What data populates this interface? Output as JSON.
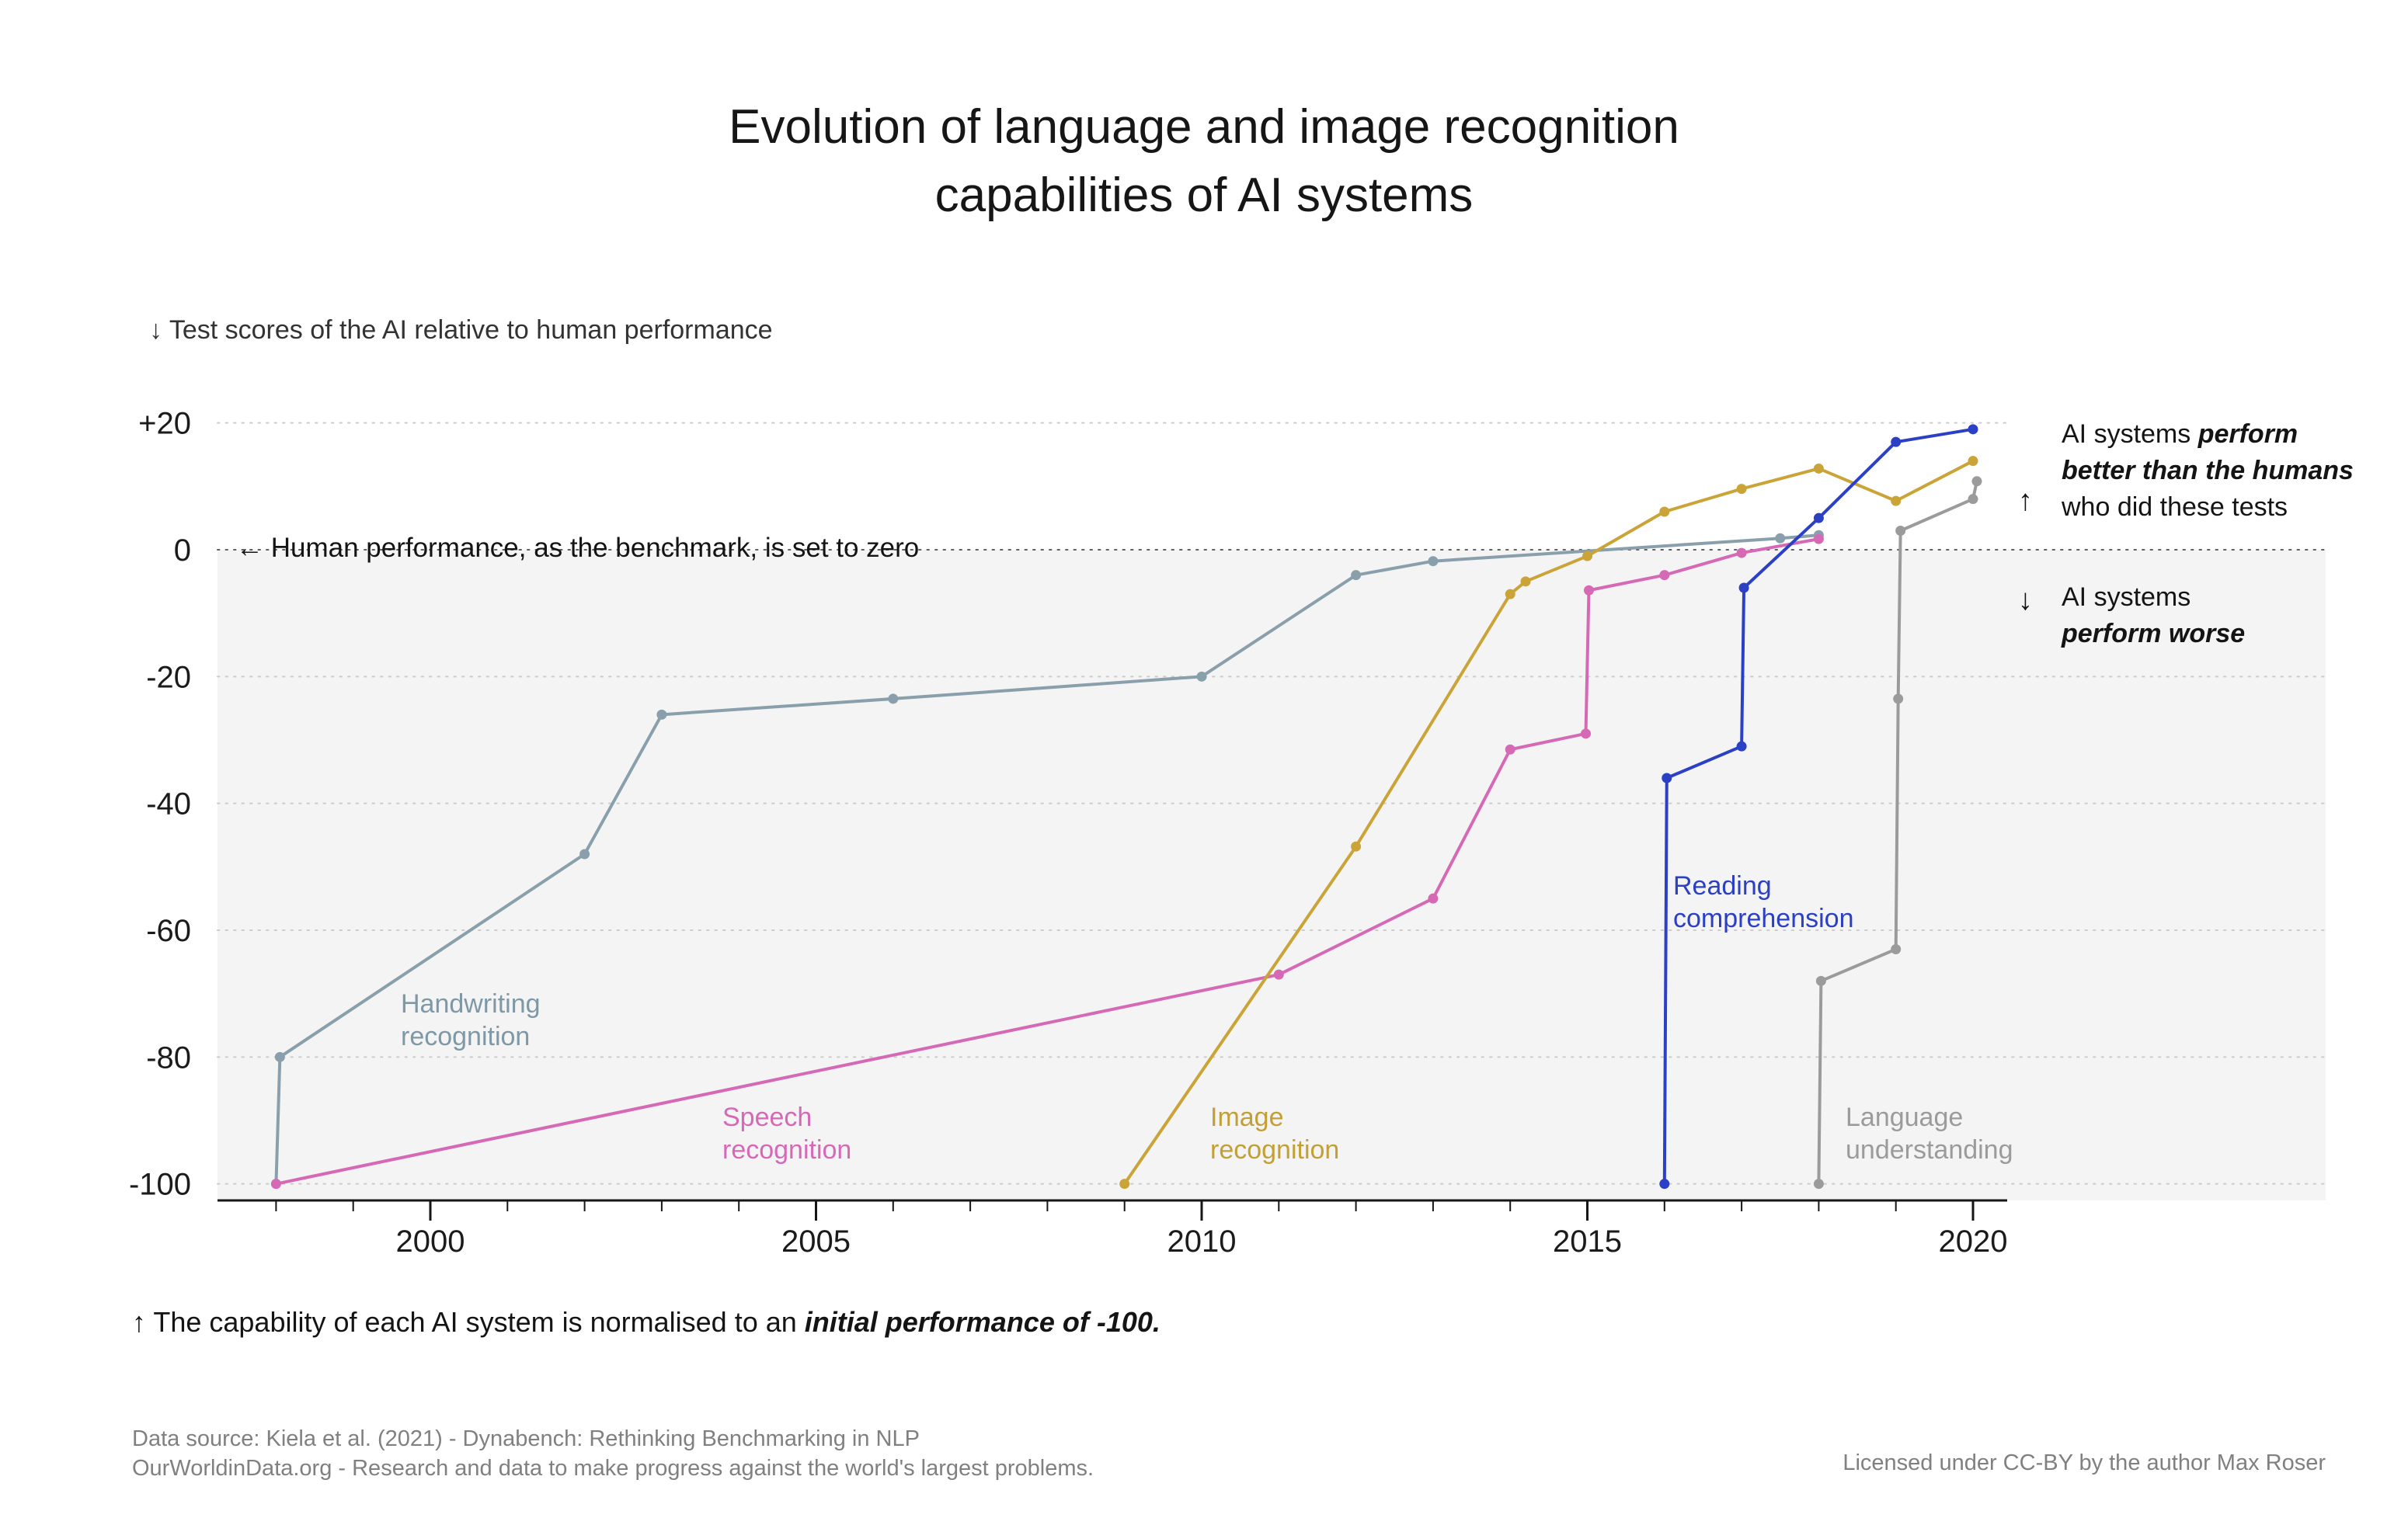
{
  "page": {
    "title_line1": "Evolution of language and image recognition",
    "title_line2": "capabilities of AI systems",
    "subtitle": "↓ Test scores of the AI relative to human performance",
    "footnote_normal": "↑ The capability of each AI system is normalised to an ",
    "footnote_emph": "initial performance of -100.",
    "footer_line1": "Data source: Kiela et al. (2021) - Dynabench: Rethinking Benchmarking in NLP",
    "footer_line2": "OurWorldinData.org - Research and data to make progress against the world's largest problems.",
    "footer_license": "Licensed under CC-BY by the author Max Roser"
  },
  "annotations": {
    "zero_line": "← Human performance, as the benchmark, is set to zero",
    "better": {
      "arrow": "↑",
      "l1_pre": "AI systems ",
      "l1_emph": "perform",
      "l2_emph": "better than the humans",
      "l3": "who did these tests"
    },
    "worse": {
      "arrow": "↓",
      "l1": "AI systems",
      "l2_emph": "perform worse"
    }
  },
  "series_labels": {
    "handwriting": {
      "line1": "Handwriting",
      "line2": "recognition"
    },
    "speech": {
      "line1": "Speech",
      "line2": "recognition"
    },
    "image": {
      "line1": "Image",
      "line2": "recognition"
    },
    "reading": {
      "line1": "Reading",
      "line2": "comprehension"
    },
    "language": {
      "line1": "Language",
      "line2": "understanding"
    }
  },
  "chart_data": {
    "type": "line",
    "title": "Evolution of language and image recognition capabilities of AI systems",
    "subtitle": "Test scores of the AI relative to human performance",
    "x_axis": {
      "ticks": [
        2000,
        2005,
        2010,
        2015,
        2020
      ],
      "minor_ticks_from": 1998,
      "minor_ticks_to": 2020,
      "range": [
        1997.2,
        2024.6
      ]
    },
    "y_axis": {
      "tick_values": [
        20,
        0,
        -20,
        -40,
        -60,
        -80,
        -100
      ],
      "tick_labels": [
        "+20",
        "0",
        "-20",
        "-40",
        "-60",
        "-80",
        "-100"
      ],
      "range": [
        -103,
        24
      ],
      "gridlines": "dotted"
    },
    "benchmark": {
      "value": 0,
      "label": "Human performance, as the benchmark, is set to zero"
    },
    "series": [
      {
        "name": "Handwriting recognition",
        "color": "#89a0ac",
        "points": [
          [
            1998,
            -100
          ],
          [
            1998.05,
            -80
          ],
          [
            2002,
            -48
          ],
          [
            2003,
            -26
          ],
          [
            2006,
            -23.5
          ],
          [
            2010,
            -20
          ],
          [
            2012,
            -4
          ],
          [
            2013,
            -1.8
          ],
          [
            2017.5,
            1.8
          ],
          [
            2018,
            2.3
          ]
        ]
      },
      {
        "name": "Speech recognition",
        "color": "#d669b6",
        "points": [
          [
            1998,
            -100
          ],
          [
            2011,
            -67
          ],
          [
            2013,
            -55
          ],
          [
            2014,
            -31.5
          ],
          [
            2014.98,
            -29
          ],
          [
            2015.02,
            -6.4
          ],
          [
            2016,
            -4
          ],
          [
            2017,
            -0.5
          ],
          [
            2018,
            1.7
          ]
        ]
      },
      {
        "name": "Image recognition",
        "color": "#cba438",
        "points": [
          [
            2009,
            -100
          ],
          [
            2012,
            -46.8
          ],
          [
            2014,
            -7
          ],
          [
            2014.2,
            -5
          ],
          [
            2015,
            -1
          ],
          [
            2016,
            6
          ],
          [
            2017,
            9.6
          ],
          [
            2018,
            12.8
          ],
          [
            2019,
            7.7
          ],
          [
            2020,
            14
          ]
        ]
      },
      {
        "name": "Reading comprehension",
        "color": "#2b40c5",
        "points": [
          [
            2016,
            -100
          ],
          [
            2016.03,
            -36
          ],
          [
            2017,
            -31
          ],
          [
            2017.03,
            -6
          ],
          [
            2018,
            5
          ],
          [
            2019,
            17
          ],
          [
            2020,
            19
          ]
        ]
      },
      {
        "name": "Language understanding",
        "color": "#9b9b9b",
        "points": [
          [
            2018,
            -100
          ],
          [
            2018.03,
            -68
          ],
          [
            2019,
            -63
          ],
          [
            2019.03,
            -23.5
          ],
          [
            2019.06,
            3
          ],
          [
            2020,
            8
          ],
          [
            2020.05,
            10.8
          ]
        ]
      }
    ],
    "layout": {
      "plot_bg_below_zero": "#f4f4f4",
      "gridline_color": "#cccccc",
      "zero_line_color": "#606060",
      "axis_color": "#161616",
      "tick_label_color": "#1b1b1b",
      "legend": "labels-on-chart"
    }
  }
}
